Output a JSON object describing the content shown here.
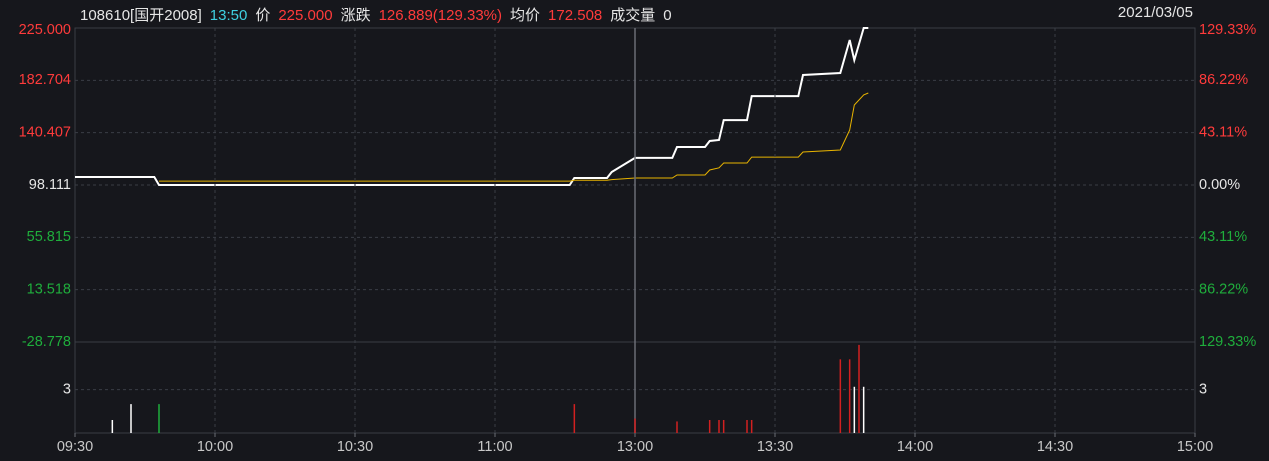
{
  "header": {
    "code": "108610[国开2008]",
    "time": "13:50",
    "price_label": "价",
    "price": "225.000",
    "change_label": "涨跌",
    "change": "126.889(129.33%)",
    "avg_label": "均价",
    "avg": "172.508",
    "volume_label": "成交量",
    "volume": "0",
    "date": "2021/03/05"
  },
  "chart_data": [
    {
      "type": "line",
      "x": [
        "09:30",
        "09:47",
        "09:48",
        "11:16",
        "11:17",
        "11:24",
        "11:25",
        "13:00",
        "13:08",
        "13:09",
        "13:15",
        "13:16",
        "13:18",
        "13:19",
        "13:24",
        "13:25",
        "13:35",
        "13:36",
        "13:44",
        "13:46",
        "13:47",
        "13:49",
        "13:50"
      ],
      "series": [
        {
          "color": "#ffffff",
          "values": [
            104.6,
            104.6,
            98.1,
            98.1,
            103.8,
            103.8,
            108.6,
            120,
            120,
            128.8,
            128.8,
            133.7,
            134.5,
            150.6,
            150.6,
            170,
            170,
            187,
            188.6,
            215.3,
            199,
            225,
            225
          ]
        },
        {
          "color": "#e8b400",
          "values": [
            null,
            null,
            101.3,
            101.3,
            102,
            102,
            102.5,
            103.8,
            103.8,
            106.2,
            106.2,
            110.2,
            112,
            115.9,
            115.9,
            120.7,
            120.7,
            124.8,
            126.4,
            142.6,
            162.8,
            170.9,
            172.5
          ]
        }
      ],
      "ylim": [
        -28.778,
        225
      ],
      "yticks": [
        {
          "value": 225,
          "label": "225.000"
        },
        182.704,
        140.407,
        98.111,
        55.815,
        13.518,
        -28.778
      ],
      "y2lim": [
        -129.33,
        129.33
      ],
      "y2ticks": [
        {
          "value": 129.33,
          "label": "129.33%"
        },
        {
          "value": 86.22,
          "label": "86.22%"
        },
        {
          "value": 43.11,
          "label": "43.11%"
        },
        {
          "value": 0,
          "label": "0.00%"
        },
        {
          "value": -43.11,
          "label": "43.11%"
        },
        {
          "value": -86.22,
          "label": "86.22%"
        },
        {
          "value": -129.33,
          "label": "129.33%"
        }
      ],
      "grid": true
    },
    {
      "type": "bar",
      "x": [
        "09:38",
        "09:42",
        "09:48",
        "11:17",
        "13:00",
        "13:09",
        "13:16",
        "13:18",
        "13:19",
        "13:24",
        "13:25",
        "13:44",
        "13:46",
        "13:47",
        "13:48",
        "13:49"
      ],
      "values": [
        0.9,
        2,
        2,
        2,
        1,
        0.8,
        0.9,
        0.9,
        0.9,
        0.9,
        0.9,
        5.1,
        5.1,
        3.2,
        6.1,
        3.2
      ],
      "colors": [
        "#ffffff",
        "#ffffff",
        "#1fae3c",
        "#d22020",
        "#d22020",
        "#d22020",
        "#d22020",
        "#d22020",
        "#d22020",
        "#d22020",
        "#d22020",
        "#d22020",
        "#d22020",
        "#ffffff",
        "#d22020",
        "#ffffff"
      ],
      "ylim": [
        0,
        6.3
      ],
      "yticks": [
        3
      ],
      "xticks": [
        "09:30",
        "10:00",
        "10:30",
        "11:00",
        "13:00",
        "13:30",
        "14:00",
        "14:30",
        "15:00"
      ],
      "grid": true
    }
  ]
}
